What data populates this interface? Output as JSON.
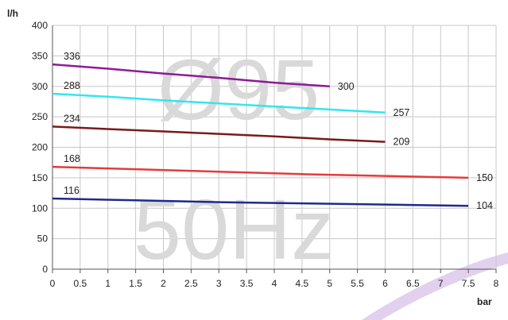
{
  "chart_data": {
    "type": "line",
    "title": "",
    "xlabel": "bar",
    "ylabel": "l/h",
    "xlim": [
      0,
      8
    ],
    "ylim": [
      0,
      400
    ],
    "x_ticks": [
      "0",
      "0.5",
      "1",
      "1.5",
      "2",
      "2.5",
      "3",
      "3.5",
      "4",
      "4.5",
      "5",
      "5.5",
      "6",
      "6.5",
      "7",
      "7.5",
      "8"
    ],
    "y_ticks": [
      "0",
      "50",
      "100",
      "150",
      "200",
      "250",
      "300",
      "350",
      "400"
    ],
    "grid": true,
    "legend": "none",
    "watermark": [
      "Ø95",
      "50Hz"
    ],
    "series": [
      {
        "color": "#8e1a99",
        "start_label": "336",
        "end_label": "300",
        "points": [
          [
            0,
            336
          ],
          [
            1,
            329
          ],
          [
            2,
            321
          ],
          [
            3,
            314
          ],
          [
            4,
            306
          ],
          [
            5,
            300
          ]
        ]
      },
      {
        "color": "#33e6f0",
        "start_label": "288",
        "end_label": "257",
        "points": [
          [
            0,
            288
          ],
          [
            1,
            283
          ],
          [
            2,
            277
          ],
          [
            3,
            272
          ],
          [
            4,
            267
          ],
          [
            5,
            262
          ],
          [
            6,
            257
          ]
        ]
      },
      {
        "color": "#7a1a1a",
        "start_label": "234",
        "end_label": "209",
        "points": [
          [
            0,
            234
          ],
          [
            1,
            230
          ],
          [
            2,
            226
          ],
          [
            3,
            222
          ],
          [
            4,
            218
          ],
          [
            5,
            213
          ],
          [
            6,
            209
          ]
        ]
      },
      {
        "color": "#e53b3b",
        "start_label": "168",
        "end_label": "150",
        "points": [
          [
            0,
            168
          ],
          [
            1.5,
            164
          ],
          [
            3,
            160
          ],
          [
            4.5,
            156
          ],
          [
            6,
            153
          ],
          [
            7.5,
            150
          ]
        ]
      },
      {
        "color": "#1f2a8c",
        "start_label": "116",
        "end_label": "104",
        "points": [
          [
            0,
            116
          ],
          [
            1.5,
            113
          ],
          [
            3,
            110
          ],
          [
            4.5,
            108
          ],
          [
            6,
            106
          ],
          [
            7.5,
            104
          ]
        ]
      }
    ]
  }
}
